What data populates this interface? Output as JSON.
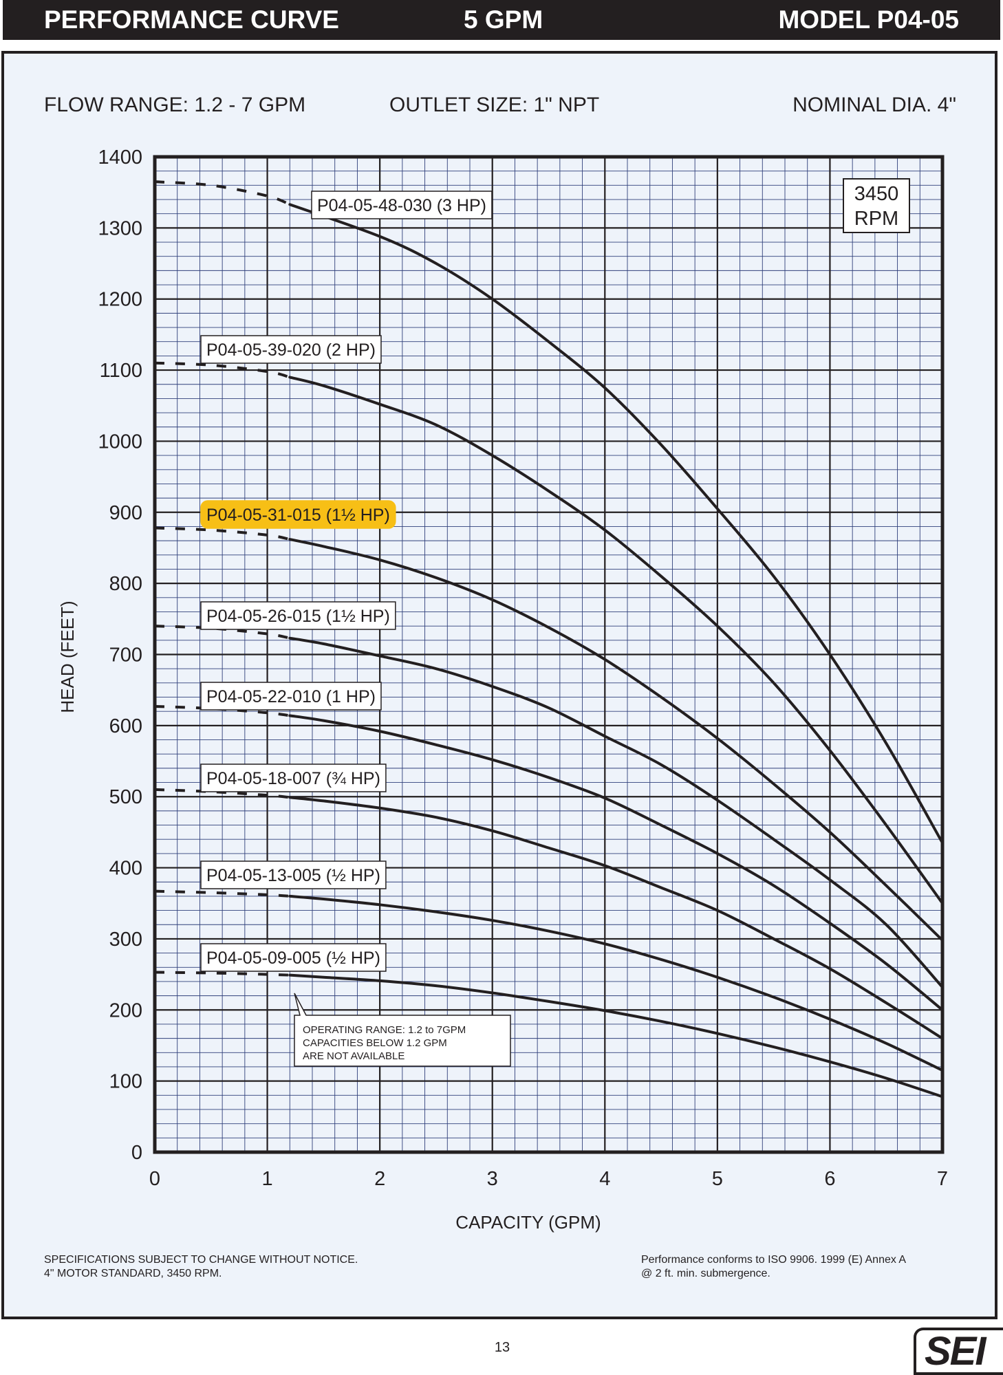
{
  "header": {
    "title": "PERFORMANCE CURVE",
    "flow": "5 GPM",
    "model": "MODEL  P04-05"
  },
  "specs": {
    "flow_range": "FLOW RANGE: 1.2 - 7 GPM",
    "outlet": "OUTLET SIZE: 1\" NPT",
    "diameter": "NOMINAL DIA. 4\""
  },
  "rpm_box": {
    "line1": "3450",
    "line2": "RPM"
  },
  "note": {
    "line1": "OPERATING RANGE: 1.2 to 7GPM",
    "line2": "CAPACITIES BELOW 1.2 GPM",
    "line3": "ARE NOT AVAILABLE"
  },
  "footer": {
    "left_line1": "SPECIFICATIONS SUBJECT TO CHANGE WITHOUT NOTICE.",
    "left_line2": "4\" MOTOR STANDARD, 3450 RPM.",
    "right_line1": "Performance conforms to ISO 9906. 1999 (E) Annex A",
    "right_line2": "@ 2 ft. min. submergence."
  },
  "page_number": "13",
  "logo_text": "SEI",
  "colors": {
    "ink": "#231f20",
    "panel_bg": "#eef3fa",
    "grid_minor": "#2f3f7a",
    "highlight": "#f7bf16"
  },
  "chart_data": {
    "type": "line",
    "xlabel": "CAPACITY (GPM)",
    "ylabel": "HEAD (FEET)",
    "xlim": [
      0,
      7
    ],
    "ylim": [
      0,
      1400
    ],
    "x_ticks": [
      "0",
      "1",
      "2",
      "3",
      "4",
      "5",
      "6",
      "7"
    ],
    "y_ticks": [
      "0",
      "100",
      "200",
      "300",
      "400",
      "500",
      "600",
      "700",
      "800",
      "900",
      "1000",
      "1100",
      "1200",
      "1300",
      "1400"
    ],
    "grid": true,
    "dashed_range": [
      0,
      1.2
    ],
    "series": [
      {
        "name": "P04-05-48-030 (3 HP)",
        "highlighted": false,
        "points": [
          [
            0,
            1365
          ],
          [
            0.5,
            1360
          ],
          [
            1,
            1345
          ],
          [
            1.2,
            1333
          ],
          [
            2,
            1288
          ],
          [
            2.5,
            1250
          ],
          [
            3,
            1200
          ],
          [
            3.5,
            1140
          ],
          [
            4,
            1075
          ],
          [
            4.5,
            995
          ],
          [
            5,
            905
          ],
          [
            5.5,
            810
          ],
          [
            6,
            700
          ],
          [
            6.5,
            575
          ],
          [
            7,
            435
          ]
        ]
      },
      {
        "name": "P04-05-39-020 (2 HP)",
        "highlighted": false,
        "points": [
          [
            0,
            1110
          ],
          [
            0.5,
            1107
          ],
          [
            1,
            1098
          ],
          [
            1.2,
            1090
          ],
          [
            1.5,
            1078
          ],
          [
            2,
            1052
          ],
          [
            2.5,
            1023
          ],
          [
            3,
            980
          ],
          [
            3.5,
            930
          ],
          [
            4,
            875
          ],
          [
            4.5,
            810
          ],
          [
            5,
            740
          ],
          [
            5.5,
            660
          ],
          [
            6,
            565
          ],
          [
            6.5,
            460
          ],
          [
            7,
            350
          ]
        ]
      },
      {
        "name": "P04-05-31-015 (1½ HP)",
        "highlighted": true,
        "points": [
          [
            0,
            878
          ],
          [
            0.5,
            875
          ],
          [
            1,
            868
          ],
          [
            1.2,
            862
          ],
          [
            1.5,
            852
          ],
          [
            2,
            833
          ],
          [
            2.5,
            808
          ],
          [
            3,
            777
          ],
          [
            3.5,
            738
          ],
          [
            4,
            693
          ],
          [
            4.5,
            640
          ],
          [
            5,
            582
          ],
          [
            5.5,
            518
          ],
          [
            6,
            450
          ],
          [
            6.5,
            375
          ],
          [
            7,
            298
          ]
        ]
      },
      {
        "name": "P04-05-26-015 (1½ HP)",
        "highlighted": false,
        "points": [
          [
            0,
            740
          ],
          [
            0.5,
            737
          ],
          [
            1,
            729
          ],
          [
            1.2,
            723
          ],
          [
            1.5,
            715
          ],
          [
            2,
            698
          ],
          [
            2.5,
            680
          ],
          [
            3,
            655
          ],
          [
            3.5,
            625
          ],
          [
            4,
            585
          ],
          [
            4.5,
            545
          ],
          [
            5,
            495
          ],
          [
            5.5,
            440
          ],
          [
            6,
            383
          ],
          [
            6.5,
            320
          ],
          [
            7,
            232
          ]
        ]
      },
      {
        "name": "P04-05-22-010 (1 HP)",
        "highlighted": false,
        "points": [
          [
            0,
            627
          ],
          [
            0.5,
            624
          ],
          [
            1,
            618
          ],
          [
            1.2,
            614
          ],
          [
            1.5,
            607
          ],
          [
            2,
            592
          ],
          [
            2.5,
            573
          ],
          [
            3,
            552
          ],
          [
            3.5,
            527
          ],
          [
            4,
            498
          ],
          [
            4.5,
            460
          ],
          [
            5,
            420
          ],
          [
            5.5,
            375
          ],
          [
            6,
            322
          ],
          [
            6.5,
            265
          ],
          [
            7,
            200
          ]
        ]
      },
      {
        "name": "P04-05-18-007 (¾ HP)",
        "highlighted": false,
        "points": [
          [
            0,
            510
          ],
          [
            0.5,
            507
          ],
          [
            1,
            502
          ],
          [
            1.2,
            499
          ],
          [
            1.5,
            494
          ],
          [
            2,
            484
          ],
          [
            2.5,
            471
          ],
          [
            3,
            452
          ],
          [
            3.5,
            428
          ],
          [
            4,
            403
          ],
          [
            4.5,
            372
          ],
          [
            5,
            340
          ],
          [
            5.5,
            300
          ],
          [
            6,
            258
          ],
          [
            6.5,
            210
          ],
          [
            7,
            160
          ]
        ]
      },
      {
        "name": "P04-05-13-005 (½ HP)",
        "highlighted": false,
        "points": [
          [
            0,
            367
          ],
          [
            0.5,
            365
          ],
          [
            1,
            362
          ],
          [
            1.2,
            360
          ],
          [
            1.5,
            356
          ],
          [
            2,
            348
          ],
          [
            2.5,
            338
          ],
          [
            3,
            326
          ],
          [
            3.5,
            311
          ],
          [
            4,
            293
          ],
          [
            4.5,
            271
          ],
          [
            5,
            246
          ],
          [
            5.5,
            218
          ],
          [
            6,
            187
          ],
          [
            6.5,
            153
          ],
          [
            7,
            115
          ]
        ]
      },
      {
        "name": "P04-05-09-005 (½ HP)",
        "highlighted": false,
        "points": [
          [
            0,
            253
          ],
          [
            0.5,
            252
          ],
          [
            1,
            250
          ],
          [
            1.2,
            249
          ],
          [
            1.5,
            246
          ],
          [
            2,
            241
          ],
          [
            2.5,
            234
          ],
          [
            3,
            224
          ],
          [
            3.5,
            212
          ],
          [
            4,
            199
          ],
          [
            4.5,
            184
          ],
          [
            5,
            167
          ],
          [
            5.5,
            148
          ],
          [
            6,
            127
          ],
          [
            6.5,
            104
          ],
          [
            7,
            78
          ]
        ]
      }
    ]
  }
}
